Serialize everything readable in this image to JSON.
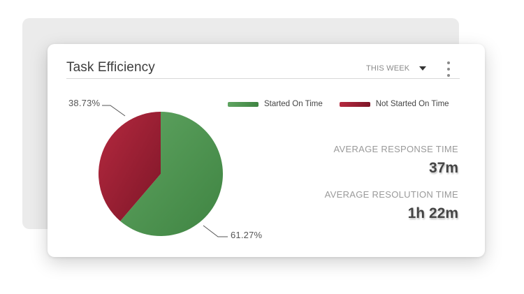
{
  "widget": {
    "title": "Task Efficiency",
    "period_label": "THIS WEEK"
  },
  "legend": {
    "items": [
      {
        "label": "Started On Time",
        "color": "#559a57"
      },
      {
        "label": "Not Started On Time",
        "color": "#9a1f33"
      }
    ]
  },
  "metrics": {
    "response_label": "AVERAGE RESPONSE TIME",
    "response_value": "37m",
    "resolution_label": "AVERAGE RESOLUTION TIME",
    "resolution_value": "1h 22m"
  },
  "icons": {
    "dropdown": "caret-down-icon",
    "menu": "more-vertical-icon"
  },
  "chart_data": {
    "type": "pie",
    "categories": [
      "Started On Time",
      "Not Started On Time"
    ],
    "values": [
      61.27,
      38.73
    ],
    "labels": [
      "61.27%",
      "38.73%"
    ],
    "colors": [
      "#559a57",
      "#9a1f33"
    ]
  }
}
